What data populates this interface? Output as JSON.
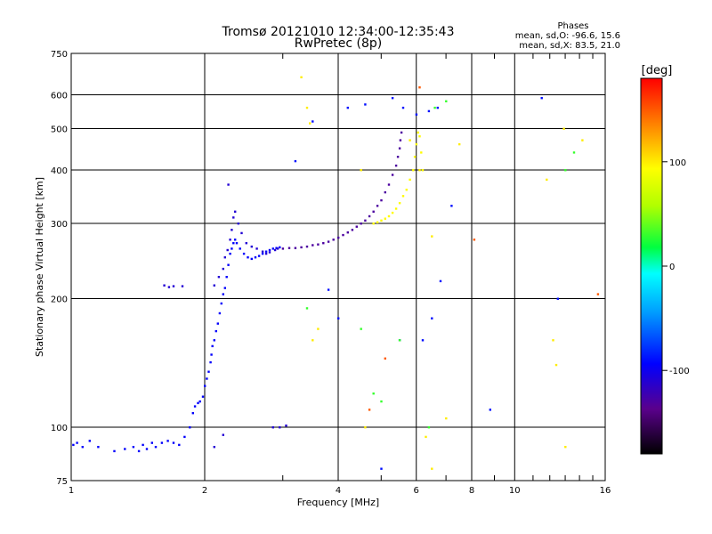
{
  "chart_data": {
    "type": "scatter",
    "title": "Tromsø 20121010 12:34:00-12:35:43",
    "subtitle": "RwPretec (8p)",
    "xlabel": "Frequency [MHz]",
    "ylabel": "Stationary phase Virtual Height [km]",
    "x_scale": "log",
    "y_scale": "log",
    "xlim": [
      1,
      16
    ],
    "ylim": [
      75,
      750
    ],
    "x_ticks": [
      1,
      2,
      4,
      6,
      8,
      10,
      16
    ],
    "x_gridlines": [
      2,
      4,
      6,
      8,
      10
    ],
    "x_minor_ticks": [
      3,
      5,
      7,
      9,
      11,
      12,
      13,
      14,
      15
    ],
    "y_ticks": [
      75,
      100,
      200,
      300,
      400,
      500,
      600,
      750
    ],
    "y_gridlines": [
      100,
      200,
      300,
      400,
      500,
      600
    ],
    "grid": true,
    "legend": {
      "heading": "Phases",
      "line1": "mean, sd,O: -96.6, 15.6",
      "line2": "mean, sd,X: 83.5, 21.0",
      "placement": "top-right"
    },
    "colorbar": {
      "label": "[deg]",
      "range": [
        -180,
        180
      ],
      "ticks": [
        100,
        0,
        -100
      ]
    },
    "traces": [
      {
        "name": "",
        "phase": -95,
        "points": [
          [
            1.01,
            91
          ],
          [
            1.03,
            92
          ],
          [
            1.06,
            90
          ],
          [
            1.1,
            93
          ],
          [
            1.15,
            90
          ],
          [
            1.25,
            88
          ],
          [
            1.32,
            89
          ],
          [
            1.38,
            90
          ],
          [
            1.42,
            88
          ],
          [
            1.45,
            91
          ],
          [
            1.48,
            89
          ],
          [
            1.52,
            92
          ],
          [
            1.55,
            90
          ],
          [
            1.6,
            92
          ],
          [
            1.65,
            93
          ],
          [
            1.7,
            92
          ],
          [
            1.75,
            91
          ],
          [
            1.8,
            95
          ],
          [
            1.85,
            100
          ],
          [
            1.88,
            108
          ],
          [
            1.9,
            112
          ],
          [
            1.93,
            114
          ],
          [
            1.95,
            115
          ],
          [
            1.98,
            118
          ],
          [
            2.0,
            125
          ],
          [
            2.02,
            130
          ],
          [
            2.04,
            135
          ],
          [
            2.06,
            142
          ],
          [
            2.07,
            148
          ],
          [
            2.08,
            155
          ],
          [
            2.1,
            160
          ],
          [
            2.12,
            168
          ],
          [
            2.14,
            175
          ],
          [
            2.16,
            185
          ],
          [
            2.18,
            195
          ],
          [
            2.2,
            205
          ],
          [
            2.22,
            212
          ],
          [
            2.24,
            225
          ],
          [
            2.26,
            240
          ],
          [
            2.28,
            255
          ],
          [
            2.3,
            262
          ],
          [
            2.32,
            270
          ],
          [
            2.34,
            275
          ],
          [
            2.36,
            270
          ],
          [
            2.4,
            262
          ],
          [
            2.45,
            255
          ],
          [
            2.5,
            250
          ],
          [
            2.55,
            248
          ],
          [
            2.6,
            250
          ],
          [
            2.65,
            252
          ],
          [
            2.7,
            255
          ],
          [
            2.75,
            258
          ],
          [
            2.8,
            260
          ],
          [
            2.85,
            262
          ],
          [
            2.9,
            263
          ],
          [
            2.95,
            264
          ]
        ]
      },
      {
        "name": "",
        "phase": -110,
        "points": [
          [
            1.62,
            215
          ],
          [
            1.66,
            213
          ],
          [
            1.7,
            214
          ],
          [
            1.78,
            214
          ],
          [
            2.1,
            215
          ],
          [
            2.15,
            225
          ],
          [
            2.2,
            235
          ],
          [
            2.22,
            250
          ],
          [
            2.25,
            260
          ],
          [
            2.28,
            275
          ],
          [
            2.3,
            290
          ],
          [
            2.32,
            310
          ],
          [
            2.34,
            320
          ],
          [
            2.38,
            300
          ],
          [
            2.42,
            285
          ],
          [
            2.48,
            270
          ],
          [
            2.55,
            265
          ],
          [
            2.62,
            262
          ],
          [
            2.7,
            258
          ],
          [
            2.75,
            255
          ],
          [
            2.8,
            257
          ],
          [
            2.88,
            260
          ],
          [
            2.92,
            262
          ],
          [
            2.26,
            370
          ],
          [
            2.85,
            100
          ],
          [
            2.95,
            100
          ],
          [
            3.05,
            101
          ],
          [
            2.1,
            90
          ],
          [
            2.2,
            96
          ]
        ]
      },
      {
        "name": "",
        "phase": -130,
        "points": [
          [
            3.0,
            262
          ],
          [
            3.1,
            263
          ],
          [
            3.2,
            263
          ],
          [
            3.3,
            264
          ],
          [
            3.4,
            265
          ],
          [
            3.5,
            267
          ],
          [
            3.6,
            268
          ],
          [
            3.7,
            270
          ],
          [
            3.8,
            272
          ],
          [
            3.9,
            275
          ],
          [
            4.0,
            278
          ],
          [
            4.1,
            282
          ],
          [
            4.2,
            286
          ],
          [
            4.3,
            290
          ],
          [
            4.4,
            295
          ],
          [
            4.5,
            300
          ],
          [
            4.6,
            305
          ],
          [
            4.7,
            312
          ],
          [
            4.8,
            320
          ],
          [
            4.9,
            330
          ],
          [
            5.0,
            340
          ],
          [
            5.1,
            355
          ],
          [
            5.2,
            370
          ],
          [
            5.3,
            390
          ],
          [
            5.4,
            410
          ],
          [
            5.45,
            430
          ],
          [
            5.5,
            450
          ],
          [
            5.52,
            470
          ],
          [
            5.55,
            490
          ]
        ]
      },
      {
        "name": "",
        "phase": 95,
        "points": [
          [
            4.8,
            300
          ],
          [
            4.9,
            302
          ],
          [
            5.0,
            305
          ],
          [
            5.1,
            308
          ],
          [
            5.2,
            312
          ],
          [
            5.3,
            318
          ],
          [
            5.4,
            325
          ],
          [
            5.5,
            335
          ],
          [
            5.6,
            348
          ],
          [
            5.7,
            360
          ],
          [
            5.8,
            380
          ],
          [
            5.9,
            400
          ],
          [
            5.95,
            430
          ],
          [
            6.0,
            460
          ],
          [
            6.05,
            490
          ],
          [
            6.1,
            480
          ],
          [
            6.15,
            440
          ],
          [
            6.2,
            400
          ]
        ]
      },
      {
        "name": "",
        "phase": -90,
        "points": [
          [
            3.2,
            420
          ],
          [
            3.5,
            520
          ],
          [
            4.2,
            560
          ],
          [
            4.6,
            570
          ],
          [
            5.3,
            590
          ],
          [
            5.6,
            560
          ],
          [
            6.0,
            540
          ],
          [
            6.4,
            550
          ],
          [
            6.7,
            560
          ],
          [
            3.8,
            210
          ],
          [
            4.0,
            180
          ],
          [
            5.5,
            160
          ],
          [
            6.2,
            160
          ],
          [
            6.5,
            180
          ],
          [
            6.8,
            220
          ],
          [
            7.2,
            330
          ],
          [
            8.8,
            110
          ],
          [
            12.5,
            200
          ],
          [
            11.5,
            590
          ],
          [
            5.0,
            80
          ]
        ]
      },
      {
        "name": "",
        "phase": 100,
        "points": [
          [
            3.3,
            660
          ],
          [
            3.4,
            560
          ],
          [
            3.45,
            515
          ],
          [
            3.5,
            160
          ],
          [
            3.6,
            170
          ],
          [
            4.5,
            400
          ],
          [
            5.8,
            470
          ],
          [
            6.1,
            400
          ],
          [
            6.5,
            280
          ],
          [
            7.0,
            105
          ],
          [
            7.5,
            460
          ],
          [
            11.8,
            380
          ],
          [
            12.2,
            160
          ],
          [
            12.4,
            140
          ],
          [
            12.9,
            500
          ],
          [
            14.2,
            470
          ],
          [
            13.0,
            90
          ],
          [
            6.3,
            95
          ],
          [
            6.5,
            80
          ],
          [
            4.6,
            100
          ]
        ]
      },
      {
        "name": "",
        "phase": 30,
        "points": [
          [
            3.4,
            190
          ],
          [
            4.5,
            170
          ],
          [
            4.8,
            120
          ],
          [
            5.0,
            115
          ],
          [
            6.6,
            560
          ],
          [
            7.0,
            580
          ],
          [
            13.0,
            400
          ],
          [
            13.6,
            440
          ],
          [
            5.5,
            160
          ],
          [
            6.4,
            100
          ]
        ]
      },
      {
        "name": "",
        "phase": 150,
        "points": [
          [
            6.1,
            625
          ],
          [
            5.1,
            145
          ],
          [
            8.1,
            275
          ],
          [
            15.4,
            205
          ],
          [
            4.7,
            110
          ]
        ]
      }
    ]
  }
}
